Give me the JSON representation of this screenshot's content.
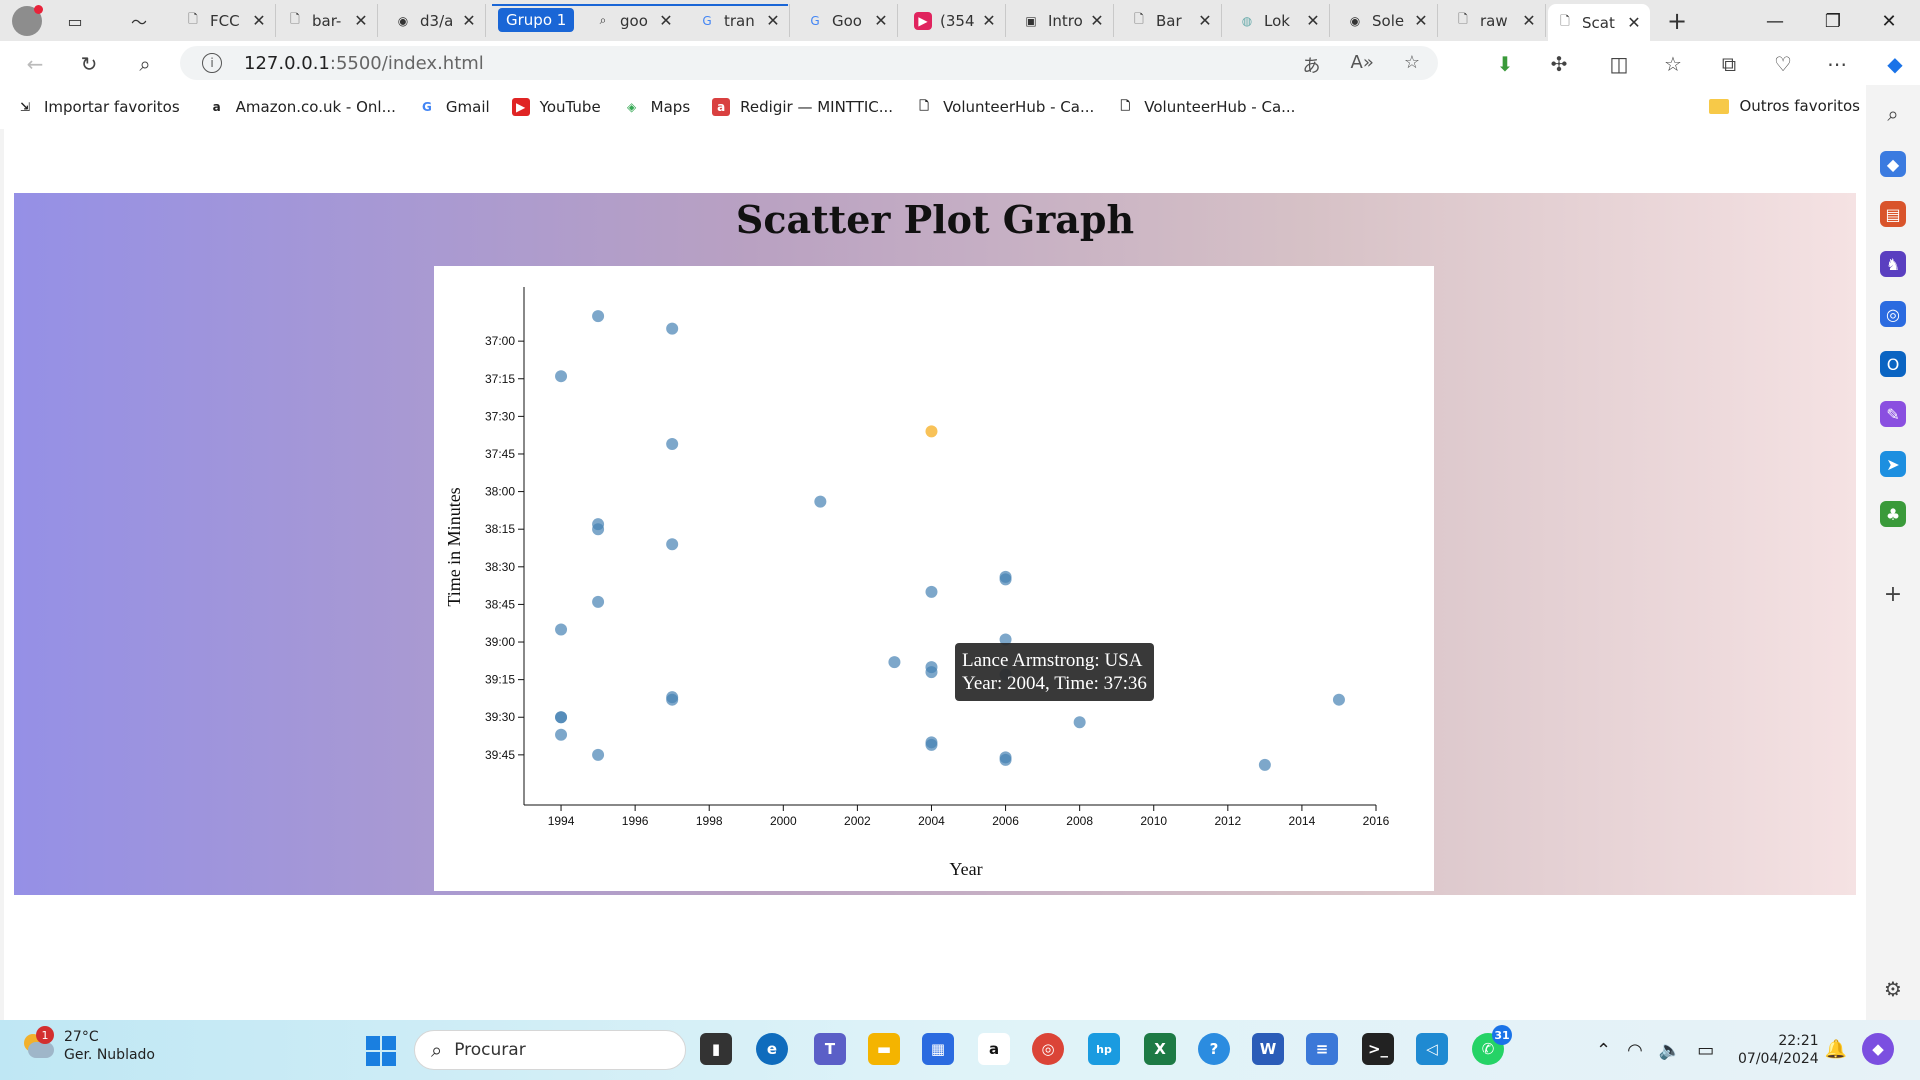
{
  "browser": {
    "tabs": [
      {
        "title": "FCC",
        "icon": "file-icon"
      },
      {
        "title": "bar-",
        "icon": "file-icon"
      },
      {
        "title": "d3/a",
        "icon": "github-icon"
      },
      {
        "title": "goo",
        "icon": "search-icon"
      },
      {
        "title": "tran",
        "icon": "translate-icon"
      },
      {
        "title": "Goo",
        "icon": "google-icon"
      },
      {
        "title": "(354",
        "icon": "youtube-icon"
      },
      {
        "title": "Intro",
        "icon": "page-icon"
      },
      {
        "title": "Bar",
        "icon": "file-icon"
      },
      {
        "title": "Lok",
        "icon": "page-icon"
      },
      {
        "title": "Sole",
        "icon": "github-icon"
      },
      {
        "title": "raw",
        "icon": "file-icon"
      },
      {
        "title": "Scat",
        "icon": "file-icon"
      }
    ],
    "group_label": "Grupo 1",
    "address": {
      "host": "127.0.0.1",
      "rest": ":5500/index.html"
    },
    "bookmarks": [
      {
        "label": "Importar favoritos",
        "icon": "import-icon"
      },
      {
        "label": "Amazon.co.uk - Onl...",
        "icon": "amazon-icon"
      },
      {
        "label": "Gmail",
        "icon": "google-icon"
      },
      {
        "label": "YouTube",
        "icon": "youtube-icon"
      },
      {
        "label": "Maps",
        "icon": "maps-icon"
      },
      {
        "label": "Redigir — MINTTIC...",
        "icon": "redigir-icon"
      },
      {
        "label": "VolunteerHub - Ca...",
        "icon": "page-icon"
      },
      {
        "label": "VolunteerHub - Ca...",
        "icon": "page-icon"
      }
    ],
    "other_favorites": "Outros favoritos"
  },
  "page": {
    "title": "Scatter Plot Graph",
    "tooltip": {
      "line1": "Lance Armstrong: USA",
      "line2": "Year: 2004, Time: 37:36"
    }
  },
  "chart_data": {
    "type": "scatter",
    "title": "Scatter Plot Graph",
    "xlabel": "Year",
    "ylabel": "Time in Minutes",
    "xlim": [
      1993,
      2016
    ],
    "ylim_seconds": [
      2200,
      2405
    ],
    "x_ticks": [
      "1994",
      "1996",
      "1998",
      "2000",
      "2002",
      "2004",
      "2006",
      "2008",
      "2010",
      "2012",
      "2014",
      "2016"
    ],
    "y_ticks": [
      "37:00",
      "37:15",
      "37:30",
      "37:45",
      "38:00",
      "38:15",
      "38:30",
      "38:45",
      "39:00",
      "39:15",
      "39:30",
      "39:45"
    ],
    "point_color": "#4682b4",
    "highlight_color": "#f7bb46",
    "points": [
      {
        "year": 1994,
        "time": "39:37"
      },
      {
        "year": 1994,
        "time": "39:30"
      },
      {
        "year": 1994,
        "time": "39:30"
      },
      {
        "year": 1994,
        "time": "38:55"
      },
      {
        "year": 1994,
        "time": "37:14"
      },
      {
        "year": 1995,
        "time": "39:45"
      },
      {
        "year": 1995,
        "time": "38:44"
      },
      {
        "year": 1995,
        "time": "38:15"
      },
      {
        "year": 1995,
        "time": "38:13"
      },
      {
        "year": 1995,
        "time": "36:50"
      },
      {
        "year": 1997,
        "time": "39:23"
      },
      {
        "year": 1997,
        "time": "39:22"
      },
      {
        "year": 1997,
        "time": "38:21"
      },
      {
        "year": 1997,
        "time": "37:41"
      },
      {
        "year": 1997,
        "time": "36:55"
      },
      {
        "year": 2001,
        "time": "38:04"
      },
      {
        "year": 2003,
        "time": "39:08"
      },
      {
        "year": 2004,
        "time": "39:41"
      },
      {
        "year": 2004,
        "time": "39:40"
      },
      {
        "year": 2004,
        "time": "39:12"
      },
      {
        "year": 2004,
        "time": "39:10"
      },
      {
        "year": 2004,
        "time": "38:40"
      },
      {
        "year": 2004,
        "time": "37:36",
        "name": "Lance Armstrong",
        "nationality": "USA",
        "highlight": true
      },
      {
        "year": 2006,
        "time": "39:47"
      },
      {
        "year": 2006,
        "time": "39:46"
      },
      {
        "year": 2006,
        "time": "39:13"
      },
      {
        "year": 2006,
        "time": "38:59"
      },
      {
        "year": 2006,
        "time": "38:34"
      },
      {
        "year": 2006,
        "time": "38:35"
      },
      {
        "year": 2008,
        "time": "39:32"
      },
      {
        "year": 2013,
        "time": "39:49"
      },
      {
        "year": 2015,
        "time": "39:23"
      }
    ]
  },
  "taskbar": {
    "weather": {
      "temp": "27°C",
      "desc": "Ger. Nublado",
      "badge": "1"
    },
    "search_placeholder": "Procurar",
    "whatsapp_badge": "31",
    "clock": {
      "time": "22:21",
      "date": "07/04/2024"
    }
  }
}
